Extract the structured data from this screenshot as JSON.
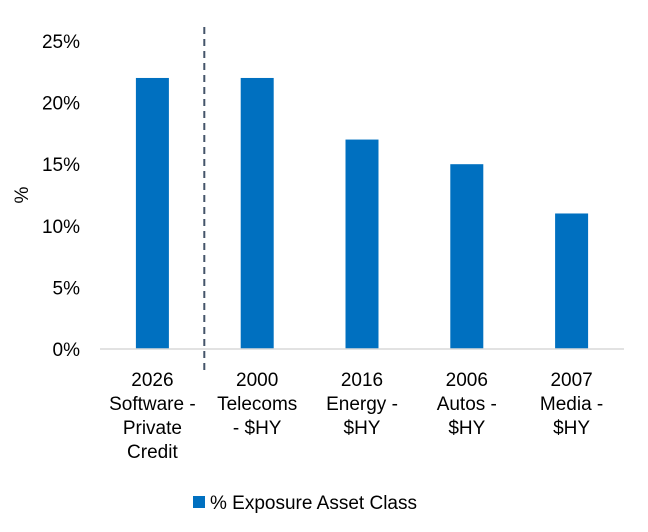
{
  "chart_data": {
    "type": "bar",
    "title": "",
    "xlabel": "",
    "ylabel": "%",
    "ylim": [
      0,
      25
    ],
    "yticks": [
      0,
      5,
      10,
      15,
      20,
      25
    ],
    "ytick_labels": [
      "0%",
      "5%",
      "10%",
      "15%",
      "20%",
      "25%"
    ],
    "categories": [
      [
        "2026",
        "Software -",
        "Private",
        "Credit"
      ],
      [
        "2000",
        "Telecoms",
        "- $HY"
      ],
      [
        "2016",
        "Energy -",
        "$HY"
      ],
      [
        "2006",
        "Autos -",
        "$HY"
      ],
      [
        "2007",
        "Media -",
        "$HY"
      ]
    ],
    "series": [
      {
        "name": "% Exposure Asset Class",
        "values": [
          22,
          22,
          17,
          15,
          11
        ],
        "color": "#0070C0"
      }
    ],
    "grid": false,
    "legend": "bottom-center",
    "divider_after_category": 0
  }
}
